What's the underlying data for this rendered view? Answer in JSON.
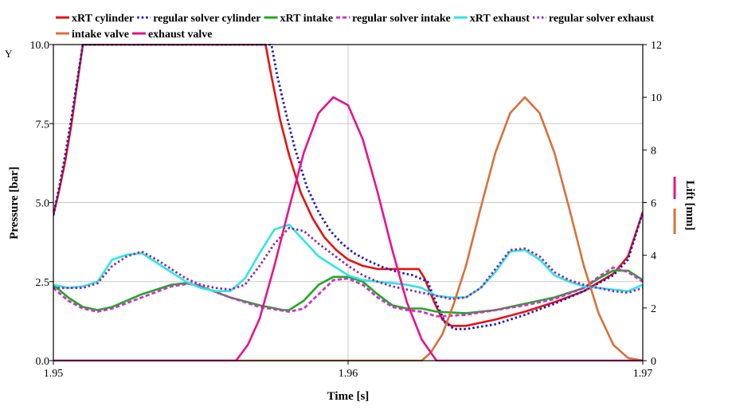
{
  "chart_data": {
    "type": "line",
    "corner_symbol": "Υ",
    "xlabel": "Time [s]",
    "ylabel": "Pressure [bar]",
    "y2label": "Lift [mm]",
    "xlim": [
      1.95,
      1.97
    ],
    "ylim": [
      0,
      10
    ],
    "y2lim": [
      0,
      12
    ],
    "x_ticks": [
      1.95,
      1.96,
      1.97
    ],
    "x_tick_labels": [
      "1.95",
      "1.96",
      "1.97"
    ],
    "y_ticks": [
      0,
      2.5,
      5,
      7.5,
      10
    ],
    "y_tick_labels": [
      "0.0",
      "2.5",
      "5.0",
      "7.5",
      "10.0"
    ],
    "y2_ticks": [
      0,
      2,
      4,
      6,
      8,
      10,
      12
    ],
    "y2_tick_labels": [
      "0",
      "2",
      "4",
      "6",
      "8",
      "10",
      "12"
    ],
    "grid": true,
    "legend_position": "top",
    "series": [
      {
        "name": "xRT cylinder",
        "color": "#e8110f",
        "dash": "solid",
        "axis": "left",
        "x": [
          1.95,
          1.9502,
          1.9504,
          1.9506,
          1.9508,
          1.951,
          1.9572,
          1.9574,
          1.9577,
          1.958,
          1.9584,
          1.9588,
          1.9592,
          1.9596,
          1.96,
          1.9605,
          1.961,
          1.9615,
          1.962,
          1.9624,
          1.9626,
          1.9629,
          1.9632,
          1.9635,
          1.964,
          1.965,
          1.966,
          1.967,
          1.968,
          1.969,
          1.9695,
          1.97
        ],
        "y": [
          4.6,
          5.4,
          6.3,
          7.4,
          8.7,
          10.0,
          10.0,
          9.0,
          7.6,
          6.5,
          5.3,
          4.5,
          3.9,
          3.5,
          3.2,
          3.0,
          2.9,
          2.9,
          2.9,
          2.9,
          2.6,
          1.9,
          1.3,
          1.1,
          1.1,
          1.3,
          1.55,
          1.85,
          2.2,
          2.75,
          3.3,
          4.7
        ]
      },
      {
        "name": "regular solver cylinder",
        "color": "#1a1acc",
        "dash": "dotted",
        "axis": "left",
        "x": [
          1.95,
          1.9502,
          1.9504,
          1.9506,
          1.9508,
          1.951,
          1.9574,
          1.9576,
          1.9579,
          1.9582,
          1.9586,
          1.959,
          1.9594,
          1.9598,
          1.9602,
          1.9607,
          1.9612,
          1.9617,
          1.9622,
          1.9627,
          1.963,
          1.9633,
          1.9636,
          1.964,
          1.965,
          1.966,
          1.967,
          1.968,
          1.969,
          1.9695,
          1.97
        ],
        "y": [
          4.6,
          5.5,
          6.5,
          7.6,
          8.8,
          10.0,
          10.0,
          9.0,
          7.8,
          6.7,
          5.5,
          4.7,
          4.1,
          3.7,
          3.4,
          3.15,
          2.95,
          2.8,
          2.7,
          2.5,
          1.8,
          1.2,
          1.0,
          1.0,
          1.15,
          1.45,
          1.8,
          2.2,
          2.7,
          3.2,
          4.7
        ]
      },
      {
        "name": "xRT intake",
        "color": "#1faa1f",
        "dash": "solid",
        "axis": "left",
        "x": [
          1.95,
          1.9505,
          1.951,
          1.9515,
          1.952,
          1.953,
          1.954,
          1.9545,
          1.955,
          1.956,
          1.957,
          1.9578,
          1.958,
          1.9585,
          1.959,
          1.9595,
          1.96,
          1.9605,
          1.961,
          1.9615,
          1.962,
          1.9625,
          1.963,
          1.964,
          1.965,
          1.966,
          1.967,
          1.968,
          1.9685,
          1.969,
          1.9695,
          1.97
        ],
        "y": [
          2.4,
          2.0,
          1.7,
          1.6,
          1.7,
          2.1,
          2.4,
          2.45,
          2.35,
          2.0,
          1.75,
          1.6,
          1.6,
          1.9,
          2.4,
          2.65,
          2.65,
          2.5,
          2.1,
          1.75,
          1.65,
          1.65,
          1.55,
          1.5,
          1.6,
          1.8,
          2.0,
          2.3,
          2.6,
          2.85,
          2.85,
          2.55
        ]
      },
      {
        "name": "regular solver intake",
        "color": "#cc33cc",
        "dash": "dashed",
        "axis": "left",
        "x": [
          1.95,
          1.9505,
          1.951,
          1.9515,
          1.952,
          1.953,
          1.954,
          1.9547,
          1.955,
          1.956,
          1.957,
          1.958,
          1.9585,
          1.959,
          1.9595,
          1.96,
          1.9605,
          1.961,
          1.9615,
          1.962,
          1.9625,
          1.963,
          1.964,
          1.965,
          1.966,
          1.967,
          1.968,
          1.9685,
          1.969,
          1.9695,
          1.97
        ],
        "y": [
          2.3,
          1.9,
          1.65,
          1.55,
          1.65,
          2.0,
          2.35,
          2.45,
          2.35,
          2.0,
          1.7,
          1.55,
          1.65,
          2.1,
          2.55,
          2.6,
          2.4,
          2.0,
          1.7,
          1.6,
          1.55,
          1.4,
          1.45,
          1.6,
          1.75,
          1.95,
          2.3,
          2.65,
          2.95,
          2.8,
          2.5
        ]
      },
      {
        "name": "xRT exhaust",
        "color": "#2ee6e6",
        "dash": "solid",
        "axis": "left",
        "x": [
          1.95,
          1.9505,
          1.951,
          1.9515,
          1.952,
          1.9525,
          1.953,
          1.9535,
          1.954,
          1.9545,
          1.955,
          1.9555,
          1.956,
          1.9565,
          1.957,
          1.9575,
          1.958,
          1.9585,
          1.959,
          1.9595,
          1.96,
          1.9605,
          1.961,
          1.9615,
          1.962,
          1.9625,
          1.963,
          1.9635,
          1.964,
          1.9645,
          1.965,
          1.9655,
          1.966,
          1.9665,
          1.967,
          1.9675,
          1.968,
          1.9685,
          1.969,
          1.9695,
          1.97
        ],
        "y": [
          2.4,
          2.3,
          2.35,
          2.5,
          3.2,
          3.35,
          3.4,
          3.1,
          2.8,
          2.5,
          2.3,
          2.2,
          2.2,
          2.6,
          3.4,
          4.15,
          4.3,
          3.8,
          3.3,
          3.0,
          2.7,
          2.55,
          2.5,
          2.45,
          2.4,
          2.3,
          2.05,
          2.0,
          2.0,
          2.3,
          2.8,
          3.45,
          3.5,
          3.2,
          2.7,
          2.5,
          2.35,
          2.3,
          2.25,
          2.2,
          2.4
        ]
      },
      {
        "name": "regular solver exhaust",
        "color": "#8a2bb0",
        "dash": "dotted",
        "axis": "left",
        "x": [
          1.95,
          1.9505,
          1.951,
          1.9515,
          1.952,
          1.9525,
          1.953,
          1.9535,
          1.954,
          1.9545,
          1.955,
          1.9555,
          1.956,
          1.9565,
          1.957,
          1.9575,
          1.958,
          1.9585,
          1.959,
          1.9595,
          1.96,
          1.9605,
          1.961,
          1.9615,
          1.962,
          1.9625,
          1.963,
          1.9635,
          1.964,
          1.9645,
          1.965,
          1.9655,
          1.966,
          1.9665,
          1.967,
          1.9675,
          1.968,
          1.9685,
          1.969,
          1.9695,
          1.97
        ],
        "y": [
          2.3,
          2.3,
          2.3,
          2.45,
          3.0,
          3.3,
          3.45,
          3.2,
          2.9,
          2.6,
          2.4,
          2.3,
          2.25,
          2.4,
          3.0,
          3.7,
          4.2,
          4.1,
          3.7,
          3.35,
          3.0,
          2.7,
          2.5,
          2.35,
          2.25,
          2.15,
          2.05,
          1.95,
          2.0,
          2.3,
          2.9,
          3.5,
          3.55,
          3.3,
          2.8,
          2.55,
          2.4,
          2.3,
          2.2,
          2.15,
          2.3
        ]
      },
      {
        "name": "intake valve",
        "color": "#d9703a",
        "dash": "solid",
        "axis": "right",
        "x": [
          1.95,
          1.9625,
          1.9628,
          1.9632,
          1.9636,
          1.964,
          1.9645,
          1.965,
          1.9655,
          1.966,
          1.9665,
          1.967,
          1.9675,
          1.968,
          1.9685,
          1.969,
          1.9695,
          1.97
        ],
        "y": [
          0,
          0,
          0.3,
          1.0,
          2.2,
          3.6,
          5.8,
          7.9,
          9.4,
          10.0,
          9.4,
          7.9,
          5.8,
          3.6,
          1.8,
          0.6,
          0.1,
          0
        ]
      },
      {
        "name": "exhaust valve",
        "color": "#e8138a",
        "dash": "solid",
        "axis": "right",
        "x": [
          1.95,
          1.9562,
          1.9566,
          1.957,
          1.9575,
          1.958,
          1.9585,
          1.959,
          1.9595,
          1.96,
          1.9605,
          1.961,
          1.9615,
          1.962,
          1.9625,
          1.963,
          1.97
        ],
        "y": [
          0,
          0,
          0.6,
          1.6,
          3.6,
          5.8,
          7.9,
          9.4,
          10.0,
          9.7,
          8.4,
          6.4,
          4.2,
          2.2,
          0.8,
          0,
          0
        ]
      }
    ]
  }
}
